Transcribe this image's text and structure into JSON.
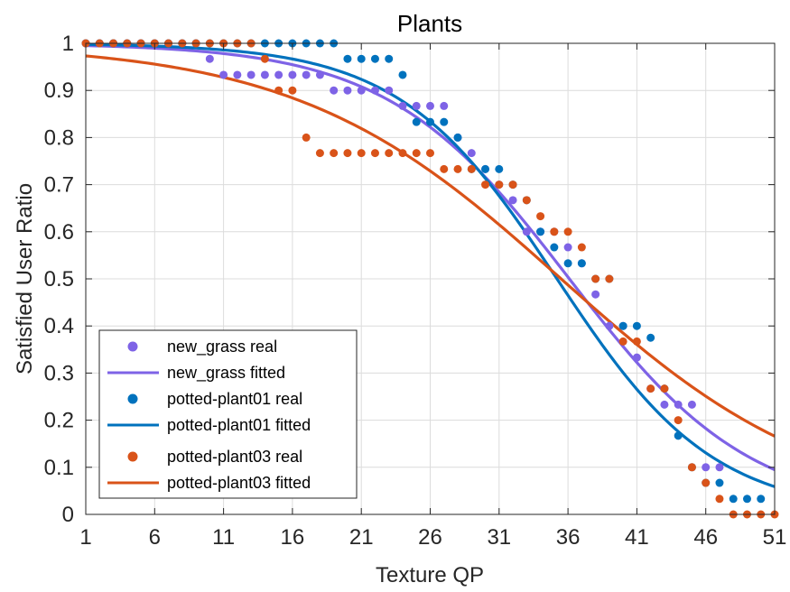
{
  "chart_data": {
    "type": "scatter",
    "title": "Plants",
    "xlabel": "Texture QP",
    "ylabel": "Satisfied User Ratio",
    "xlim": [
      1,
      51
    ],
    "ylim": [
      0,
      1
    ],
    "xticks": [
      1,
      6,
      11,
      16,
      21,
      26,
      31,
      36,
      41,
      46,
      51
    ],
    "yticks": [
      0,
      0.1,
      0.2,
      0.3,
      0.4,
      0.5,
      0.6,
      0.7,
      0.8,
      0.9,
      1
    ],
    "grid": true,
    "legend_position": "bottom-left",
    "series": [
      {
        "name": "new_grass real",
        "kind": "points",
        "color": "#7E63E6",
        "points": [
          [
            1,
            1
          ],
          [
            2,
            1
          ],
          [
            3,
            1
          ],
          [
            4,
            1
          ],
          [
            5,
            1
          ],
          [
            6,
            1
          ],
          [
            7,
            1
          ],
          [
            8,
            1
          ],
          [
            9,
            1
          ],
          [
            10,
            0.967
          ],
          [
            11,
            0.933
          ],
          [
            12,
            0.933
          ],
          [
            13,
            0.933
          ],
          [
            14,
            0.933
          ],
          [
            15,
            0.933
          ],
          [
            16,
            0.933
          ],
          [
            17,
            0.933
          ],
          [
            18,
            0.933
          ],
          [
            19,
            0.9
          ],
          [
            20,
            0.9
          ],
          [
            21,
            0.9
          ],
          [
            22,
            0.9
          ],
          [
            23,
            0.9
          ],
          [
            24,
            0.867
          ],
          [
            25,
            0.867
          ],
          [
            26,
            0.867
          ],
          [
            27,
            0.867
          ],
          [
            28,
            0.8
          ],
          [
            29,
            0.767
          ],
          [
            30,
            0.733
          ],
          [
            31,
            0.7
          ],
          [
            32,
            0.667
          ],
          [
            33,
            0.6
          ],
          [
            34,
            0.6
          ],
          [
            35,
            0.6
          ],
          [
            36,
            0.567
          ],
          [
            37,
            0.533
          ],
          [
            38,
            0.467
          ],
          [
            39,
            0.4
          ],
          [
            40,
            0.4
          ],
          [
            41,
            0.333
          ],
          [
            42,
            0.267
          ],
          [
            43,
            0.233
          ],
          [
            44,
            0.233
          ],
          [
            45,
            0.233
          ],
          [
            46,
            0.1
          ],
          [
            47,
            0.1
          ]
        ]
      },
      {
        "name": "new_grass fitted",
        "kind": "curve",
        "color": "#7E63E6",
        "mu": 36.1,
        "sigma": 6.6
      },
      {
        "name": "potted-plant01 real",
        "kind": "points",
        "color": "#0072BD",
        "points": [
          [
            1,
            1
          ],
          [
            2,
            1
          ],
          [
            3,
            1
          ],
          [
            4,
            1
          ],
          [
            5,
            1
          ],
          [
            6,
            1
          ],
          [
            7,
            1
          ],
          [
            8,
            1
          ],
          [
            9,
            1
          ],
          [
            10,
            1
          ],
          [
            11,
            1
          ],
          [
            12,
            1
          ],
          [
            13,
            1
          ],
          [
            14,
            1
          ],
          [
            15,
            1
          ],
          [
            16,
            1
          ],
          [
            17,
            1
          ],
          [
            18,
            1
          ],
          [
            19,
            1
          ],
          [
            20,
            0.967
          ],
          [
            21,
            0.967
          ],
          [
            22,
            0.967
          ],
          [
            23,
            0.967
          ],
          [
            24,
            0.933
          ],
          [
            25,
            0.833
          ],
          [
            26,
            0.833
          ],
          [
            27,
            0.833
          ],
          [
            28,
            0.8
          ],
          [
            29,
            0.733
          ],
          [
            30,
            0.733
          ],
          [
            31,
            0.733
          ],
          [
            32,
            0.7
          ],
          [
            33,
            0.667
          ],
          [
            34,
            0.6
          ],
          [
            35,
            0.567
          ],
          [
            36,
            0.533
          ],
          [
            37,
            0.533
          ],
          [
            38,
            0.5
          ],
          [
            39,
            0.5
          ],
          [
            40,
            0.4
          ],
          [
            41,
            0.4
          ],
          [
            42,
            0.375
          ],
          [
            43,
            0.267
          ],
          [
            44,
            0.167
          ],
          [
            45,
            0.1
          ],
          [
            46,
            0.067
          ],
          [
            47,
            0.067
          ],
          [
            48,
            0.033
          ],
          [
            49,
            0.033
          ],
          [
            50,
            0.033
          ]
        ]
      },
      {
        "name": "potted-plant01 fitted",
        "kind": "curve",
        "color": "#0072BD",
        "mu": 35.2,
        "sigma": 5.7
      },
      {
        "name": "potted-plant03 real",
        "kind": "points",
        "color": "#D95319",
        "points": [
          [
            1,
            1
          ],
          [
            2,
            1
          ],
          [
            3,
            1
          ],
          [
            4,
            1
          ],
          [
            5,
            1
          ],
          [
            6,
            1
          ],
          [
            7,
            1
          ],
          [
            8,
            1
          ],
          [
            9,
            1
          ],
          [
            10,
            1
          ],
          [
            11,
            1
          ],
          [
            12,
            1
          ],
          [
            13,
            1
          ],
          [
            14,
            0.967
          ],
          [
            15,
            0.9
          ],
          [
            16,
            0.9
          ],
          [
            17,
            0.8
          ],
          [
            18,
            0.767
          ],
          [
            19,
            0.767
          ],
          [
            20,
            0.767
          ],
          [
            21,
            0.767
          ],
          [
            22,
            0.767
          ],
          [
            23,
            0.767
          ],
          [
            24,
            0.767
          ],
          [
            25,
            0.767
          ],
          [
            26,
            0.767
          ],
          [
            27,
            0.733
          ],
          [
            28,
            0.733
          ],
          [
            29,
            0.733
          ],
          [
            30,
            0.7
          ],
          [
            31,
            0.7
          ],
          [
            32,
            0.7
          ],
          [
            33,
            0.667
          ],
          [
            34,
            0.633
          ],
          [
            35,
            0.6
          ],
          [
            36,
            0.6
          ],
          [
            37,
            0.567
          ],
          [
            38,
            0.5
          ],
          [
            39,
            0.5
          ],
          [
            40,
            0.367
          ],
          [
            41,
            0.367
          ],
          [
            42,
            0.267
          ],
          [
            43,
            0.267
          ],
          [
            44,
            0.2
          ],
          [
            45,
            0.1
          ],
          [
            46,
            0.067
          ],
          [
            47,
            0.033
          ],
          [
            48,
            0
          ],
          [
            49,
            0
          ],
          [
            50,
            0
          ],
          [
            51,
            0
          ]
        ]
      },
      {
        "name": "potted-plant03 fitted",
        "kind": "curve",
        "color": "#D95319",
        "mu": 35.5,
        "sigma": 9.6
      }
    ]
  }
}
